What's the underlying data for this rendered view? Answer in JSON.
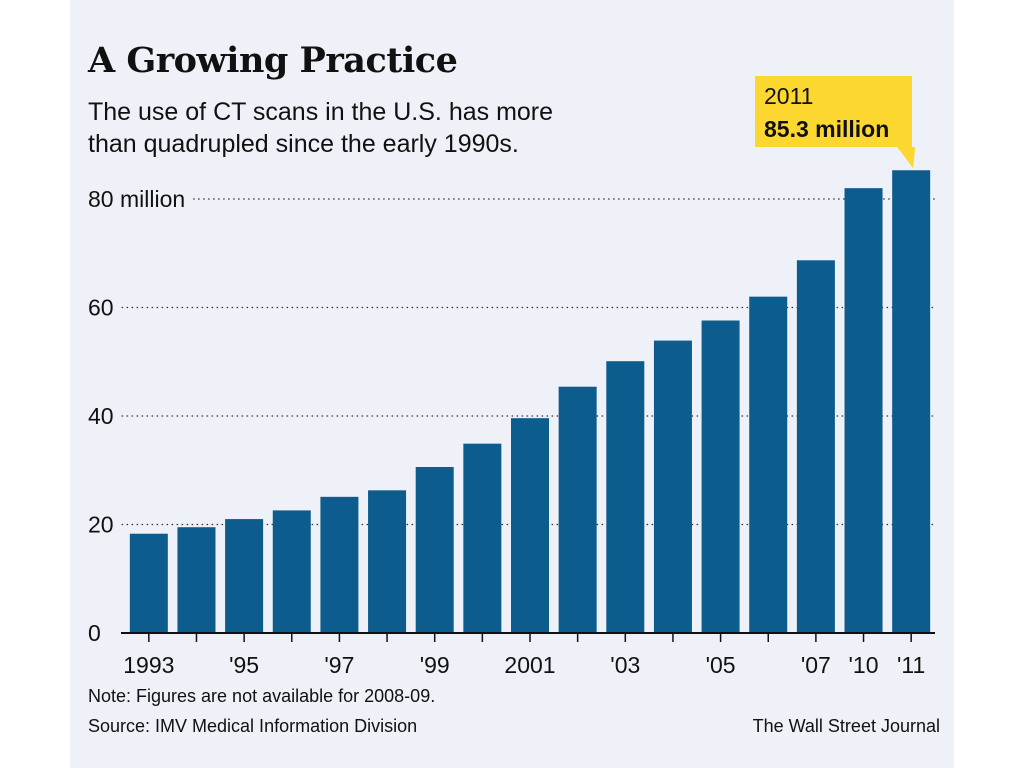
{
  "colors": {
    "bar": "#0d5c8e",
    "background": "#eef1f7",
    "callout": "#fcd730",
    "text": "#111111"
  },
  "header": {
    "title": "A Growing Practice",
    "subtitle": "The use of CT scans in the U.S. has more than quadrupled since the early 1990s."
  },
  "footer": {
    "note": "Note: Figures are not available for 2008-09.",
    "source": "Source: IMV Medical Information Division",
    "credit": "The Wall Street Journal"
  },
  "chart_data": {
    "type": "bar",
    "title": "A Growing Practice",
    "subtitle": "The use of CT scans in the U.S. has more than quadrupled since the early 1990s.",
    "categories": [
      "1993",
      "1994",
      "1995",
      "1996",
      "1997",
      "1998",
      "1999",
      "2000",
      "2001",
      "2002",
      "2003",
      "2004",
      "2005",
      "2006",
      "2007",
      "2010",
      "2011"
    ],
    "values": [
      18.3,
      19.5,
      21.0,
      22.6,
      25.1,
      26.3,
      30.6,
      34.9,
      39.6,
      45.4,
      50.1,
      53.9,
      57.6,
      62.0,
      68.7,
      82.0,
      85.3
    ],
    "x_tick_labels": [
      "1993",
      "",
      "'95",
      "",
      "'97",
      "",
      "'99",
      "",
      "2001",
      "",
      "'03",
      "",
      "'05",
      "",
      "'07",
      "'10",
      "'11"
    ],
    "y_ticks": [
      0,
      20,
      40,
      60,
      80
    ],
    "y_tick_labels": [
      "0",
      "20",
      "40",
      "60",
      "80 million"
    ],
    "ylim": [
      0,
      80
    ],
    "grid": "dotted horizontal",
    "xlabel": "",
    "ylabel": "",
    "annotation": {
      "category": "2011",
      "line1": "2011",
      "line2": "85.3 million"
    }
  }
}
